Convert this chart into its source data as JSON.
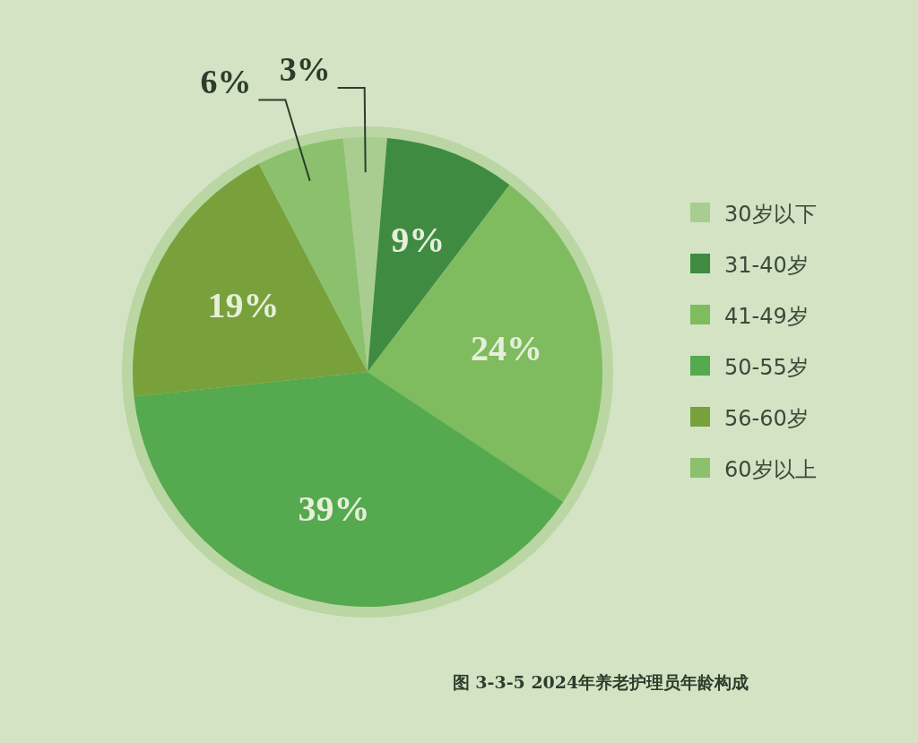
{
  "chart_data": {
    "type": "pie",
    "categories": [
      "30岁以下",
      "31-40岁",
      "41-49岁",
      "50-55岁",
      "56-60岁",
      "60岁以上"
    ],
    "values": [
      3,
      9,
      24,
      39,
      19,
      6
    ],
    "colors": [
      "#a9cd91",
      "#3f8b42",
      "#7fbb5f",
      "#55a94f",
      "#78a13c",
      "#8bc06d"
    ],
    "value_labels": [
      "3%",
      "9%",
      "24%",
      "39%",
      "19%",
      "6%"
    ],
    "legend": "right",
    "annotations": [
      "图 3-3-5 2024年养老护理员年龄构成"
    ]
  }
}
